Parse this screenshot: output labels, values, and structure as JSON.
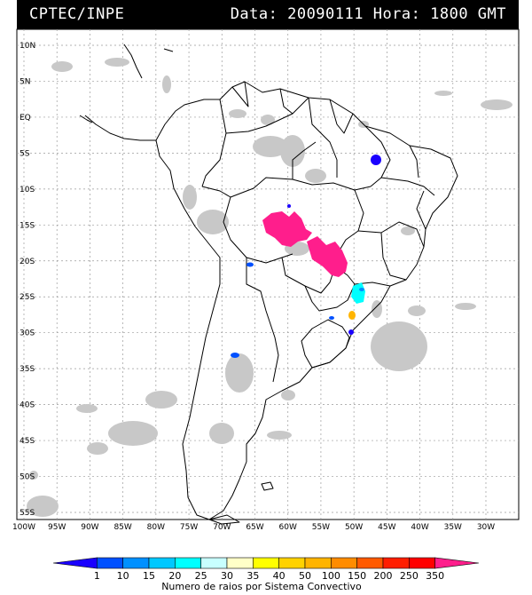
{
  "header": {
    "left": "CPTEC/INPE",
    "right": "Data: 20090111 Hora: 1800 GMT"
  },
  "map": {
    "lat_labels": [
      "10N",
      "5N",
      "EQ",
      "5S",
      "10S",
      "15S",
      "20S",
      "25S",
      "30S",
      "35S",
      "40S",
      "45S",
      "50S",
      "55S"
    ],
    "lon_labels": [
      "100W",
      "95W",
      "90W",
      "85W",
      "80W",
      "75W",
      "70W",
      "65W",
      "60W",
      "55W",
      "50W",
      "45W",
      "40W",
      "35W",
      "30W"
    ]
  },
  "colorbar": {
    "ticks": [
      "1",
      "10",
      "15",
      "20",
      "25",
      "30",
      "35",
      "40",
      "50",
      "100",
      "150",
      "200",
      "250",
      "350"
    ],
    "colors": [
      "#1a00ff",
      "#0050ff",
      "#0090ff",
      "#00c8ff",
      "#00ffff",
      "#c8ffff",
      "#ffffc8",
      "#ffff00",
      "#ffd200",
      "#ffb400",
      "#ff8c00",
      "#ff5a00",
      "#ff1e00",
      "#ff0000",
      "#ff1e8c"
    ],
    "title": "Numero de raios por Sistema Convectivo"
  }
}
